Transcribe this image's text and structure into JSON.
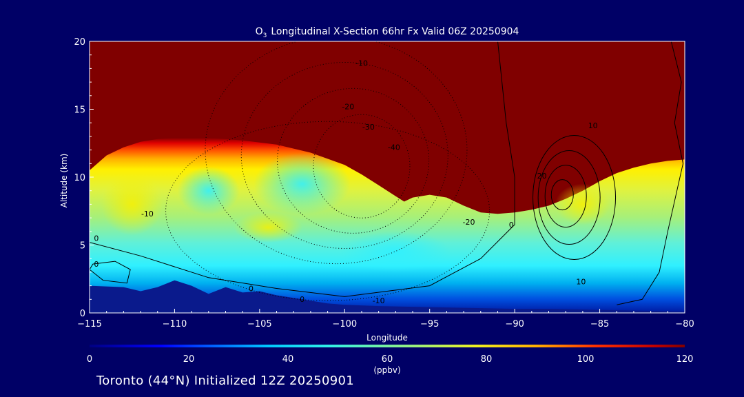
{
  "chart_data": {
    "type": "heatmap",
    "title": "Longitudinal X-Section 66hr  Fx Valid 06Z 20250904",
    "title_species": "O",
    "title_subscript": "3",
    "xlabel": "Longitude",
    "ylabel": "Altitude (km)",
    "xlim": [
      -115,
      -80
    ],
    "ylim": [
      0,
      20
    ],
    "x_ticks": [
      -115,
      -110,
      -105,
      -100,
      -95,
      -90,
      -85,
      -80
    ],
    "x_tick_labels": [
      "−115",
      "−110",
      "−105",
      "−100",
      "−95",
      "−90",
      "−85",
      "−80"
    ],
    "y_ticks": [
      0,
      5,
      10,
      15,
      20
    ],
    "y_tick_labels": [
      "0",
      "5",
      "10",
      "15",
      "20"
    ],
    "colorbar": {
      "min": 0,
      "max": 120,
      "ticks": [
        0,
        20,
        40,
        60,
        80,
        100,
        120
      ],
      "tick_labels": [
        "0",
        "20",
        "40",
        "60",
        "80",
        "100",
        "120"
      ],
      "units": "(ppbv)"
    },
    "tropopause_height_km": {
      "lon": [
        -115,
        -114,
        -113,
        -112,
        -111,
        -110,
        -108,
        -106,
        -104,
        -102,
        -100,
        -99,
        -98,
        -97,
        -96.5,
        -96,
        -95,
        -94,
        -93,
        -92,
        -91,
        -90,
        -89,
        -88,
        -87,
        -86,
        -85,
        -84,
        -83,
        -82,
        -81,
        -80
      ],
      "alt": [
        10.5,
        11.6,
        12.2,
        12.6,
        12.8,
        12.9,
        12.9,
        12.7,
        12.4,
        11.8,
        10.9,
        10.2,
        9.4,
        8.6,
        8.2,
        8.5,
        8.7,
        8.5,
        7.9,
        7.4,
        7.3,
        7.4,
        7.6,
        7.9,
        8.4,
        9.0,
        9.7,
        10.3,
        10.7,
        11.0,
        11.2,
        11.3
      ]
    },
    "surface_mask_km": {
      "lon": [
        -115,
        -113,
        -112,
        -111,
        -110,
        -109,
        -108,
        -107,
        -106,
        -105,
        -104,
        -103,
        -102,
        -101,
        -100,
        -98,
        -96,
        -94,
        -92,
        -90,
        -88,
        -86,
        -84,
        -82,
        -80
      ],
      "alt": [
        2.0,
        1.9,
        1.6,
        1.9,
        2.4,
        2.0,
        1.4,
        1.9,
        1.5,
        1.6,
        1.3,
        1.1,
        0.9,
        0.7,
        0.6,
        0.5,
        0.45,
        0.4,
        0.35,
        0.3,
        0.3,
        0.25,
        0.2,
        0.15,
        0.1
      ]
    },
    "contour_labels": [
      {
        "text": "-10",
        "lon": -99,
        "alt": 18.2
      },
      {
        "text": "-20",
        "lon": -99.8,
        "alt": 15.0
      },
      {
        "text": "-30",
        "lon": -98.6,
        "alt": 13.5
      },
      {
        "text": "-40",
        "lon": -97.1,
        "alt": 12.0
      },
      {
        "text": "-10",
        "lon": -111.6,
        "alt": 7.1
      },
      {
        "text": "-20",
        "lon": -92.7,
        "alt": 6.5
      },
      {
        "text": "-10",
        "lon": -98.0,
        "alt": 0.7
      },
      {
        "text": "0",
        "lon": -114.6,
        "alt": 5.3
      },
      {
        "text": "0",
        "lon": -114.6,
        "alt": 3.4
      },
      {
        "text": "0",
        "lon": -105.5,
        "alt": 1.6
      },
      {
        "text": "0",
        "lon": -102.5,
        "alt": 0.8
      },
      {
        "text": "0",
        "lon": -90.2,
        "alt": 6.3
      },
      {
        "text": "10",
        "lon": -85.4,
        "alt": 13.6
      },
      {
        "text": "20",
        "lon": -88.4,
        "alt": 9.9
      },
      {
        "text": "10",
        "lon": -86.1,
        "alt": 2.1
      }
    ]
  },
  "footer": {
    "location_text": "Toronto (44°N) Initialized 12Z 20250901"
  },
  "colors": {
    "background": "#000066",
    "text": "#ffffff",
    "stratosphere": "#800000",
    "surface": "#0a1a8c"
  }
}
